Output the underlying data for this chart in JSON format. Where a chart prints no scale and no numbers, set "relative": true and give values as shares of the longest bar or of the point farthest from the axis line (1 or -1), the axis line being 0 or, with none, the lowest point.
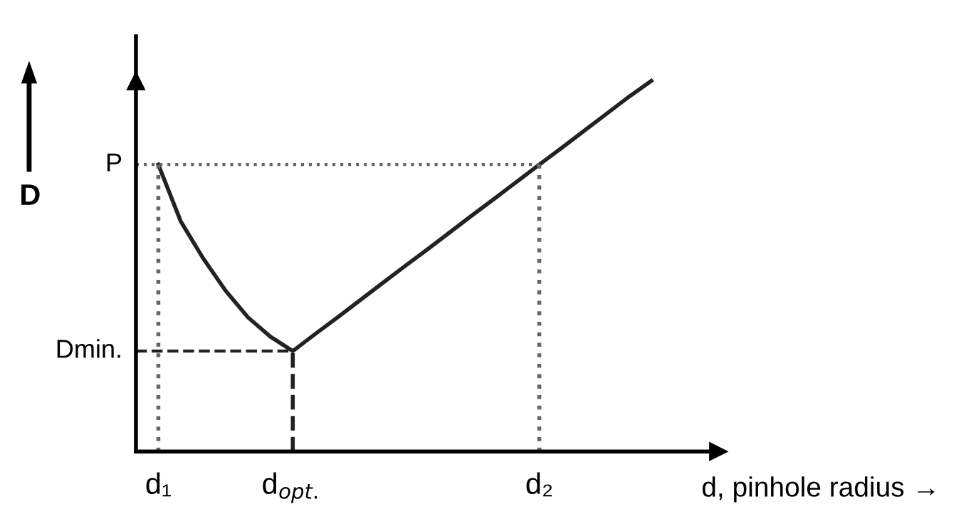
{
  "chart_data": {
    "type": "line",
    "relative": true,
    "ylabel": "D",
    "xlabel": "d, pinhole radius →",
    "categories": [
      "d₁",
      null,
      null,
      null,
      null,
      null,
      "d$_{opt.}$",
      null,
      null,
      null,
      null,
      null,
      null,
      null,
      null,
      null,
      null,
      "d₂",
      null,
      null,
      null,
      null,
      null
    ],
    "series": [
      {
        "color": "#222222",
        "values": [
          0.774,
          0.621,
          0.521,
          0.434,
          0.362,
          0.31,
          0.271,
          0.317,
          0.362,
          0.408,
          0.454,
          0.5,
          0.545,
          0.591,
          0.637,
          0.682,
          0.728,
          0.774,
          0.819,
          0.865,
          0.911,
          0.957,
          1.0
        ]
      }
    ],
    "ref_lines": [
      {
        "axis": "y",
        "value": 0.774,
        "label": "P",
        "line_style": "dotted",
        "color": "#666666"
      },
      {
        "axis": "y",
        "value": 0.271,
        "label": "Dmin.",
        "line_style": "dashed",
        "color": "#222222"
      },
      {
        "axis": "x",
        "value": "d₁",
        "line_style": "dotted",
        "color": "#666666"
      },
      {
        "axis": "x",
        "value": "d$_{opt.}$",
        "line_style": "dashed",
        "color": "#222222"
      },
      {
        "axis": "x",
        "value": "d₂",
        "line_style": "dotted",
        "color": "#666666"
      }
    ],
    "grid": false,
    "legend": false,
    "marker": "none",
    "line_style": "solid"
  }
}
